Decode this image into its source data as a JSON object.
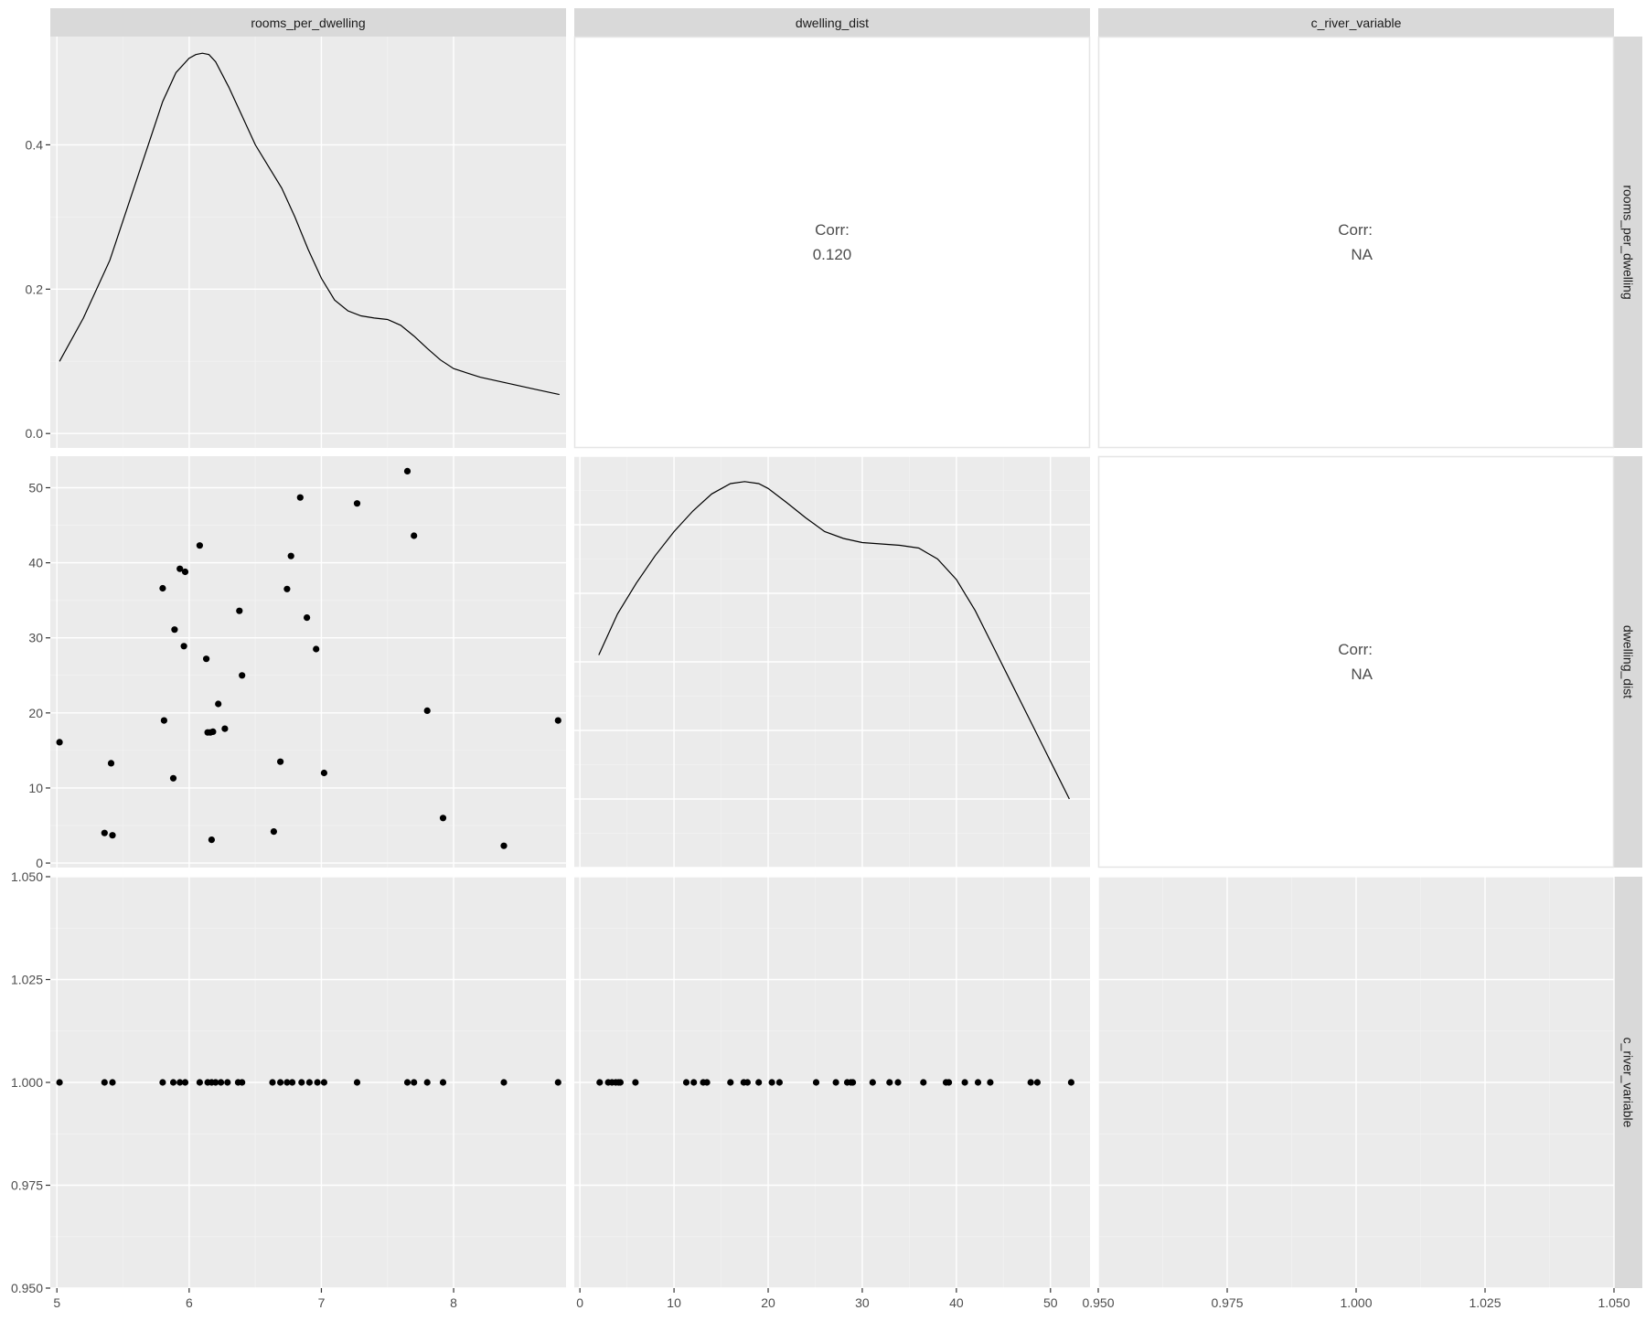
{
  "chart_data": {
    "type": "scatter-matrix",
    "variables": [
      "rooms_per_dwelling",
      "dwelling_dist",
      "c_river_variable"
    ],
    "axes": {
      "rooms_per_dwelling": {
        "x_range": [
          4.95,
          8.85
        ],
        "x_ticks": [
          5,
          6,
          7,
          8
        ],
        "x_tick_labels": [
          "5",
          "6",
          "7",
          "8"
        ]
      },
      "dwelling_dist": {
        "x_range": [
          -0.6,
          54.2
        ],
        "x_ticks": [
          0,
          10,
          20,
          30,
          40,
          50
        ],
        "x_tick_labels": [
          "0",
          "10",
          "20",
          "30",
          "40",
          "50"
        ],
        "y_range": [
          -0.6,
          54.2
        ],
        "y_ticks": [
          0,
          10,
          20,
          30,
          40,
          50
        ],
        "y_tick_labels": [
          "0",
          "10",
          "20",
          "30",
          "40",
          "50"
        ]
      },
      "c_river_variable": {
        "x_range": [
          0.95,
          1.05
        ],
        "x_ticks": [
          0.95,
          0.975,
          1.0,
          1.025,
          1.05
        ],
        "x_tick_labels": [
          "0.950",
          "0.975",
          "1.000",
          "1.025",
          "1.050"
        ],
        "y_range": [
          0.95,
          1.05
        ],
        "y_ticks": [
          0.95,
          0.975,
          1.0,
          1.025,
          1.05
        ],
        "y_tick_labels": [
          "0.950",
          "0.975",
          "1.000",
          "1.025",
          "1.050"
        ]
      },
      "density_y": {
        "y_range": [
          -0.02,
          0.55
        ],
        "y_ticks": [
          0.0,
          0.2,
          0.4
        ],
        "y_tick_labels": [
          "0.0",
          "0.2",
          "0.4"
        ]
      }
    },
    "density_rooms": {
      "x": [
        5.02,
        5.2,
        5.4,
        5.6,
        5.8,
        5.9,
        6.0,
        6.05,
        6.1,
        6.15,
        6.2,
        6.3,
        6.4,
        6.5,
        6.6,
        6.7,
        6.8,
        6.9,
        7.0,
        7.1,
        7.2,
        7.3,
        7.4,
        7.5,
        7.6,
        7.7,
        7.8,
        7.9,
        8.0,
        8.2,
        8.4,
        8.6,
        8.8
      ],
      "y": [
        0.1,
        0.16,
        0.24,
        0.35,
        0.46,
        0.5,
        0.52,
        0.525,
        0.527,
        0.525,
        0.515,
        0.48,
        0.44,
        0.4,
        0.37,
        0.34,
        0.3,
        0.255,
        0.215,
        0.185,
        0.17,
        0.163,
        0.16,
        0.158,
        0.15,
        0.135,
        0.118,
        0.102,
        0.09,
        0.078,
        0.07,
        0.062,
        0.054
      ]
    },
    "density_dist": {
      "x": [
        2,
        4,
        6,
        8,
        10,
        12,
        14,
        16,
        17.5,
        19,
        20,
        22,
        24,
        26,
        28,
        30,
        32,
        34,
        36,
        38,
        40,
        42,
        44,
        46,
        48,
        50,
        52
      ],
      "y": [
        0.31,
        0.37,
        0.415,
        0.455,
        0.49,
        0.52,
        0.545,
        0.56,
        0.563,
        0.56,
        0.553,
        0.532,
        0.51,
        0.49,
        0.48,
        0.474,
        0.472,
        0.47,
        0.466,
        0.45,
        0.42,
        0.375,
        0.32,
        0.265,
        0.21,
        0.155,
        0.1
      ],
      "y_range": [
        0.0,
        0.6
      ]
    },
    "scatter_rooms_vs_dist": {
      "x": [
        5.02,
        5.36,
        5.41,
        5.42,
        5.8,
        5.81,
        5.88,
        5.89,
        5.93,
        5.96,
        5.97,
        6.08,
        6.13,
        6.14,
        6.16,
        6.17,
        6.18,
        6.22,
        6.27,
        6.38,
        6.4,
        6.64,
        6.69,
        6.74,
        6.77,
        6.84,
        6.89,
        6.96,
        7.02,
        7.27,
        7.65,
        7.7,
        7.8,
        7.92,
        8.38,
        8.79
      ],
      "y": [
        16.1,
        4.0,
        13.3,
        3.7,
        36.6,
        19.0,
        11.3,
        31.1,
        39.2,
        28.9,
        38.8,
        42.3,
        27.2,
        17.4,
        17.4,
        3.1,
        17.5,
        21.2,
        17.9,
        33.6,
        25.0,
        4.2,
        13.5,
        36.5,
        40.9,
        48.7,
        32.7,
        28.5,
        12.0,
        47.9,
        52.2,
        43.6,
        20.3,
        6.0,
        2.3,
        19.0
      ]
    },
    "strip_rooms": {
      "x": [
        5.02,
        5.36,
        5.42,
        5.8,
        5.88,
        5.93,
        5.97,
        6.08,
        6.14,
        6.17,
        6.2,
        6.24,
        6.29,
        6.37,
        6.4,
        6.63,
        6.69,
        6.74,
        6.78,
        6.85,
        6.91,
        6.97,
        7.02,
        7.27,
        7.65,
        7.7,
        7.8,
        7.92,
        8.38,
        8.79
      ],
      "y_value": 1.0
    },
    "strip_dist": {
      "x": [
        2.1,
        3.0,
        3.4,
        3.8,
        4.1,
        4.3,
        5.9,
        11.3,
        12.1,
        13.1,
        13.5,
        16.0,
        17.4,
        17.8,
        19.0,
        20.4,
        21.2,
        25.1,
        27.2,
        28.4,
        28.8,
        29.0,
        31.1,
        32.9,
        33.8,
        36.5,
        38.9,
        39.2,
        40.9,
        42.3,
        43.6,
        47.9,
        48.6,
        52.2
      ],
      "y_value": 1.0
    },
    "correlations": [
      {
        "row": "rooms_per_dwelling",
        "col": "dwelling_dist",
        "label": "Corr:",
        "value": "0.120"
      },
      {
        "row": "rooms_per_dwelling",
        "col": "c_river_variable",
        "label": "Corr:",
        "value": "NA"
      },
      {
        "row": "dwelling_dist",
        "col": "c_river_variable",
        "label": "Corr:",
        "value": "NA"
      }
    ],
    "colors": {
      "panel_bg": "#ebebeb",
      "grid_major": "#ffffff",
      "grid_minor": "#f2f2f2",
      "strip_bg": "#d9d9d9",
      "point": "#000000",
      "line": "#000000",
      "text": "#4d4d4d",
      "strip_text": "#1a1a1a"
    }
  }
}
